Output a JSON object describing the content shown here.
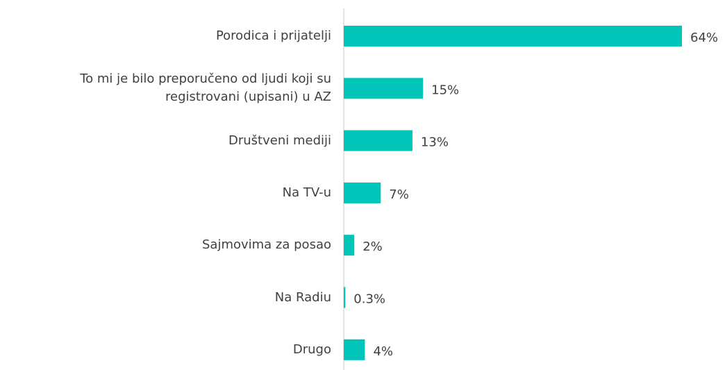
{
  "chart_data": {
    "type": "bar",
    "orientation": "horizontal",
    "categories": [
      "Porodica i prijatelji",
      "To mi je bilo preporučeno od ljudi koji su registrovani (upisani) u AZ",
      "Društveni mediji",
      "Na TV-u",
      "Sajmovima za posao",
      "Na Radiu",
      "Drugo"
    ],
    "values": [
      64,
      15,
      13,
      7,
      2,
      0.3,
      4
    ],
    "value_labels": [
      "64%",
      "15%",
      "13%",
      "7%",
      "2%",
      "0.3%",
      "4%"
    ],
    "color": "#00c5b8",
    "xlim": [
      0,
      64
    ]
  }
}
